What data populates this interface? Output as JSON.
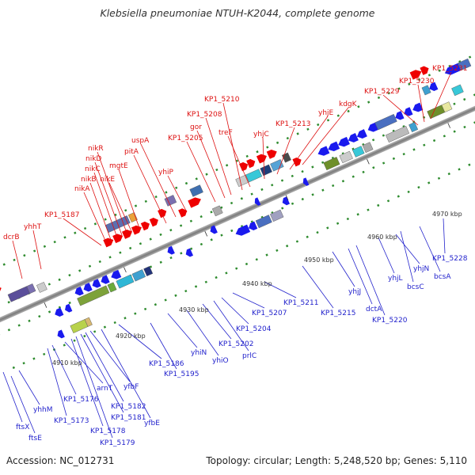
{
  "title": "Klebsiella pneumoniae NTUH-K2044, complete genome",
  "accession": "Accession: NC_012731",
  "summary": "Topology: circular; Length: 5,248,520 bp; Genes: 5,110",
  "colors": {
    "forward": "#ee0000",
    "reverse": "#1a1aee",
    "label_forward": "#dd1111",
    "label_reverse": "#2222cc",
    "backbone": "#8a8a8a",
    "dots": "#2e8b2e"
  },
  "kbp_ticks": [
    "4910 kbp",
    "4920 kbp",
    "4930 kbp",
    "4940 kbp",
    "4950 kbp",
    "4960 kbp",
    "4970 kbp"
  ],
  "labels_forward": [
    "dcrB",
    "yhhT",
    "KP1_5187",
    "nikA",
    "nikB",
    "nikC",
    "nikD",
    "nikR",
    "nikE",
    "mgtE",
    "pitA",
    "uspA",
    "yhiP",
    "KP1_5205",
    "gor",
    "KP1_5208",
    "KP1_5210",
    "treF",
    "yhjC",
    "KP1_5213",
    "yhjE",
    "kdgK",
    "KP1_5229",
    "KP1_5230",
    "KP1_5231"
  ],
  "labels_reverse": [
    "ftsX",
    "ftsE",
    "yhhM",
    "KP1_5173",
    "KP1_5176",
    "arnT",
    "KP1_5178",
    "KP1_5179",
    "KP1_5181",
    "KP1_5182",
    "yfbF",
    "yfbE",
    "KP1_5186",
    "KP1_5195",
    "yhiN",
    "yhiO",
    "KP1_5202",
    "prlC",
    "KP1_5204",
    "KP1_5207",
    "KP1_5211",
    "KP1_5215",
    "yhjJ",
    "dctA",
    "KP1_5220",
    "yhjL",
    "yhjN",
    "bcsC",
    "bcsA",
    "KP1_5228"
  ]
}
